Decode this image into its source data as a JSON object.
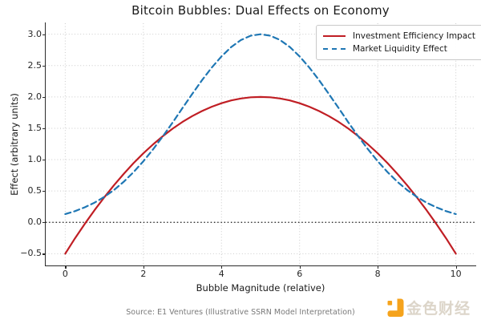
{
  "figure": {
    "title": "Bitcoin Bubbles: Dual Effects on Economy",
    "source_note": "Source: E1 Ventures (Illustrative SSRN Model Interpretation)"
  },
  "watermark": {
    "icon": "jinse-finance-logo",
    "text": "金色财经",
    "logo_color": "#f5a31c",
    "text_color": "#dcd5c9"
  },
  "colors": {
    "investment_line": "#c01e24",
    "liquidity_line": "#1f77b4",
    "grid": "#cbcbcb",
    "zero_line": "#111111",
    "spine": "#2b2b2b",
    "title_text": "#1a1a1a",
    "muted_text": "#7a7a7a"
  },
  "chart_data": {
    "type": "line",
    "title": "Bitcoin Bubbles: Dual Effects on Economy",
    "xlabel": "Bubble Magnitude (relative)",
    "ylabel": "Effect (arbitrary units)",
    "xlim": [
      -0.5,
      10.5
    ],
    "ylim": [
      -0.675,
      3.175
    ],
    "xticks": [
      0,
      2,
      4,
      6,
      8,
      10
    ],
    "xtick_labels": [
      "0",
      "2",
      "4",
      "6",
      "8",
      "10"
    ],
    "yticks": [
      -0.5,
      0.0,
      0.5,
      1.0,
      1.5,
      2.0,
      2.5,
      3.0
    ],
    "ytick_labels": [
      "−0.5",
      "0.0",
      "0.5",
      "1.0",
      "1.5",
      "2.0",
      "2.5",
      "3.0"
    ],
    "grid": {
      "on": true,
      "style": "dotted",
      "color": "#cbcbcb"
    },
    "zero_line": {
      "y": 0,
      "style": "dotted",
      "color": "#111111"
    },
    "legend_position": "upper right",
    "x": [
      0,
      0.25,
      0.5,
      0.75,
      1,
      1.25,
      1.5,
      1.75,
      2,
      2.25,
      2.5,
      2.75,
      3,
      3.25,
      3.5,
      3.75,
      4,
      4.25,
      4.5,
      4.75,
      5,
      5.25,
      5.5,
      5.75,
      6,
      6.25,
      6.5,
      6.75,
      7,
      7.25,
      7.5,
      7.75,
      8,
      8.25,
      8.5,
      8.75,
      9,
      9.25,
      9.5,
      9.75,
      10
    ],
    "series": [
      {
        "name": "Investment Efficiency Impact",
        "color": "#c01e24",
        "line_style": "solid",
        "line_width": 2.2,
        "values": [
          -0.5,
          -0.256,
          -0.025,
          0.194,
          0.4,
          0.594,
          0.775,
          0.944,
          1.1,
          1.244,
          1.375,
          1.494,
          1.6,
          1.694,
          1.775,
          1.844,
          1.9,
          1.944,
          1.975,
          1.994,
          2.0,
          1.994,
          1.975,
          1.944,
          1.9,
          1.844,
          1.775,
          1.694,
          1.6,
          1.494,
          1.375,
          1.244,
          1.1,
          0.944,
          0.775,
          0.594,
          0.4,
          0.194,
          -0.025,
          -0.256,
          -0.5
        ]
      },
      {
        "name": "Market Liquidity Effect",
        "color": "#1f77b4",
        "line_style": "dashed",
        "line_width": 2.2,
        "values": [
          0.132,
          0.178,
          0.239,
          0.314,
          0.406,
          0.517,
          0.649,
          0.801,
          0.974,
          1.166,
          1.373,
          1.593,
          1.82,
          2.046,
          2.265,
          2.468,
          2.647,
          2.796,
          2.908,
          2.977,
          3.0,
          2.977,
          2.908,
          2.796,
          2.647,
          2.468,
          2.265,
          2.046,
          1.82,
          1.593,
          1.373,
          1.166,
          0.974,
          0.801,
          0.649,
          0.517,
          0.406,
          0.314,
          0.239,
          0.178,
          0.132
        ]
      }
    ]
  }
}
